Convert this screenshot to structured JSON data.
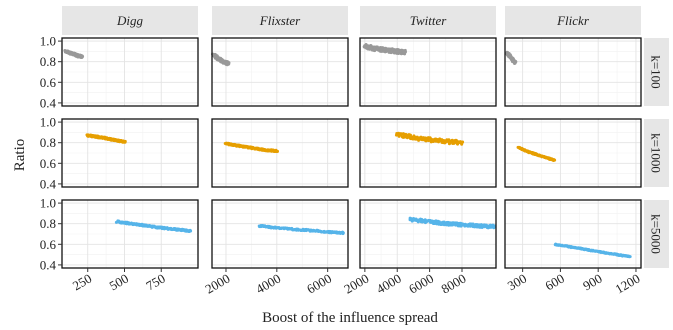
{
  "chart_data": {
    "type": "scatter",
    "xlabel": "Boost of the influence spread",
    "ylabel": "Ratio",
    "columns": [
      {
        "name": "Digg",
        "xlim": [
          75,
          1000
        ],
        "xticks": [
          {
            "v": 250,
            "label": "250"
          },
          {
            "v": 500,
            "label": "500"
          },
          {
            "v": 750,
            "label": "750"
          }
        ]
      },
      {
        "name": "Flixster",
        "xlim": [
          1450,
          6800
        ],
        "xticks": [
          {
            "v": 2000,
            "label": "2000"
          },
          {
            "v": 4000,
            "label": "4000"
          },
          {
            "v": 6000,
            "label": "6000"
          }
        ]
      },
      {
        "name": "Twitter",
        "xlim": [
          1700,
          10100
        ],
        "xticks": [
          {
            "v": 2000,
            "label": "2000"
          },
          {
            "v": 4000,
            "label": "4000"
          },
          {
            "v": 6000,
            "label": "6000"
          },
          {
            "v": 8000,
            "label": "8000"
          }
        ]
      },
      {
        "name": "Flickr",
        "xlim": [
          160,
          1240
        ],
        "xticks": [
          {
            "v": 300,
            "label": "300"
          },
          {
            "v": 600,
            "label": "600"
          },
          {
            "v": 900,
            "label": "900"
          },
          {
            "v": 1200,
            "label": "1200"
          }
        ]
      }
    ],
    "rows": [
      {
        "name": "k=100",
        "color": "#999999"
      },
      {
        "name": "k=1000",
        "color": "#E69F00"
      },
      {
        "name": "k=5000",
        "color": "#56B4E9"
      }
    ],
    "ylim": [
      0.37,
      1.03
    ],
    "yticks": [
      {
        "v": 0.4,
        "label": "0.4"
      },
      {
        "v": 0.6,
        "label": "0.6"
      },
      {
        "v": 0.8,
        "label": "0.8"
      },
      {
        "v": 1.0,
        "label": "1.0"
      }
    ],
    "series": [
      {
        "column": "Digg",
        "row": "k=100",
        "x": [
          100,
          130,
          160,
          190,
          210
        ],
        "y": [
          0.9,
          0.885,
          0.87,
          0.855,
          0.85
        ],
        "spread": 0.02
      },
      {
        "column": "Digg",
        "row": "k=1000",
        "x": [
          250,
          300,
          350,
          400,
          450,
          500
        ],
        "y": [
          0.87,
          0.86,
          0.85,
          0.835,
          0.82,
          0.81
        ],
        "spread": 0.015
      },
      {
        "column": "Digg",
        "row": "k=5000",
        "x": [
          450,
          550,
          650,
          750,
          850,
          950
        ],
        "y": [
          0.82,
          0.8,
          0.78,
          0.76,
          0.745,
          0.73
        ],
        "spread": 0.015
      },
      {
        "column": "Flixster",
        "row": "k=100",
        "x": [
          1500,
          1700,
          1900,
          2100
        ],
        "y": [
          0.87,
          0.83,
          0.8,
          0.78
        ],
        "spread": 0.03
      },
      {
        "column": "Flixster",
        "row": "k=1000",
        "x": [
          2000,
          2500,
          3000,
          3500,
          4000
        ],
        "y": [
          0.79,
          0.77,
          0.75,
          0.73,
          0.72
        ],
        "spread": 0.015
      },
      {
        "column": "Flixster",
        "row": "k=5000",
        "x": [
          3300,
          4000,
          5000,
          6000,
          6600
        ],
        "y": [
          0.78,
          0.76,
          0.74,
          0.72,
          0.71
        ],
        "spread": 0.015
      },
      {
        "column": "Twitter",
        "row": "k=100",
        "x": [
          2000,
          2500,
          3000,
          3500,
          4000,
          4500
        ],
        "y": [
          0.95,
          0.93,
          0.92,
          0.91,
          0.9,
          0.89
        ],
        "spread": 0.04
      },
      {
        "column": "Twitter",
        "row": "k=1000",
        "x": [
          4000,
          5000,
          6000,
          7000,
          8000
        ],
        "y": [
          0.88,
          0.85,
          0.83,
          0.81,
          0.8
        ],
        "spread": 0.04
      },
      {
        "column": "Twitter",
        "row": "k=5000",
        "x": [
          4800,
          6000,
          7000,
          8000,
          9000,
          10000
        ],
        "y": [
          0.84,
          0.82,
          0.8,
          0.79,
          0.78,
          0.77
        ],
        "spread": 0.03
      },
      {
        "column": "Flickr",
        "row": "k=100",
        "x": [
          180,
          200,
          220,
          240
        ],
        "y": [
          0.88,
          0.85,
          0.82,
          0.79
        ],
        "spread": 0.025
      },
      {
        "column": "Flickr",
        "row": "k=1000",
        "x": [
          270,
          350,
          450,
          550
        ],
        "y": [
          0.75,
          0.71,
          0.67,
          0.63
        ],
        "spread": 0.012
      },
      {
        "column": "Flickr",
        "row": "k=5000",
        "x": [
          560,
          700,
          850,
          1000,
          1150
        ],
        "y": [
          0.6,
          0.57,
          0.54,
          0.51,
          0.48
        ],
        "spread": 0.01
      }
    ]
  }
}
